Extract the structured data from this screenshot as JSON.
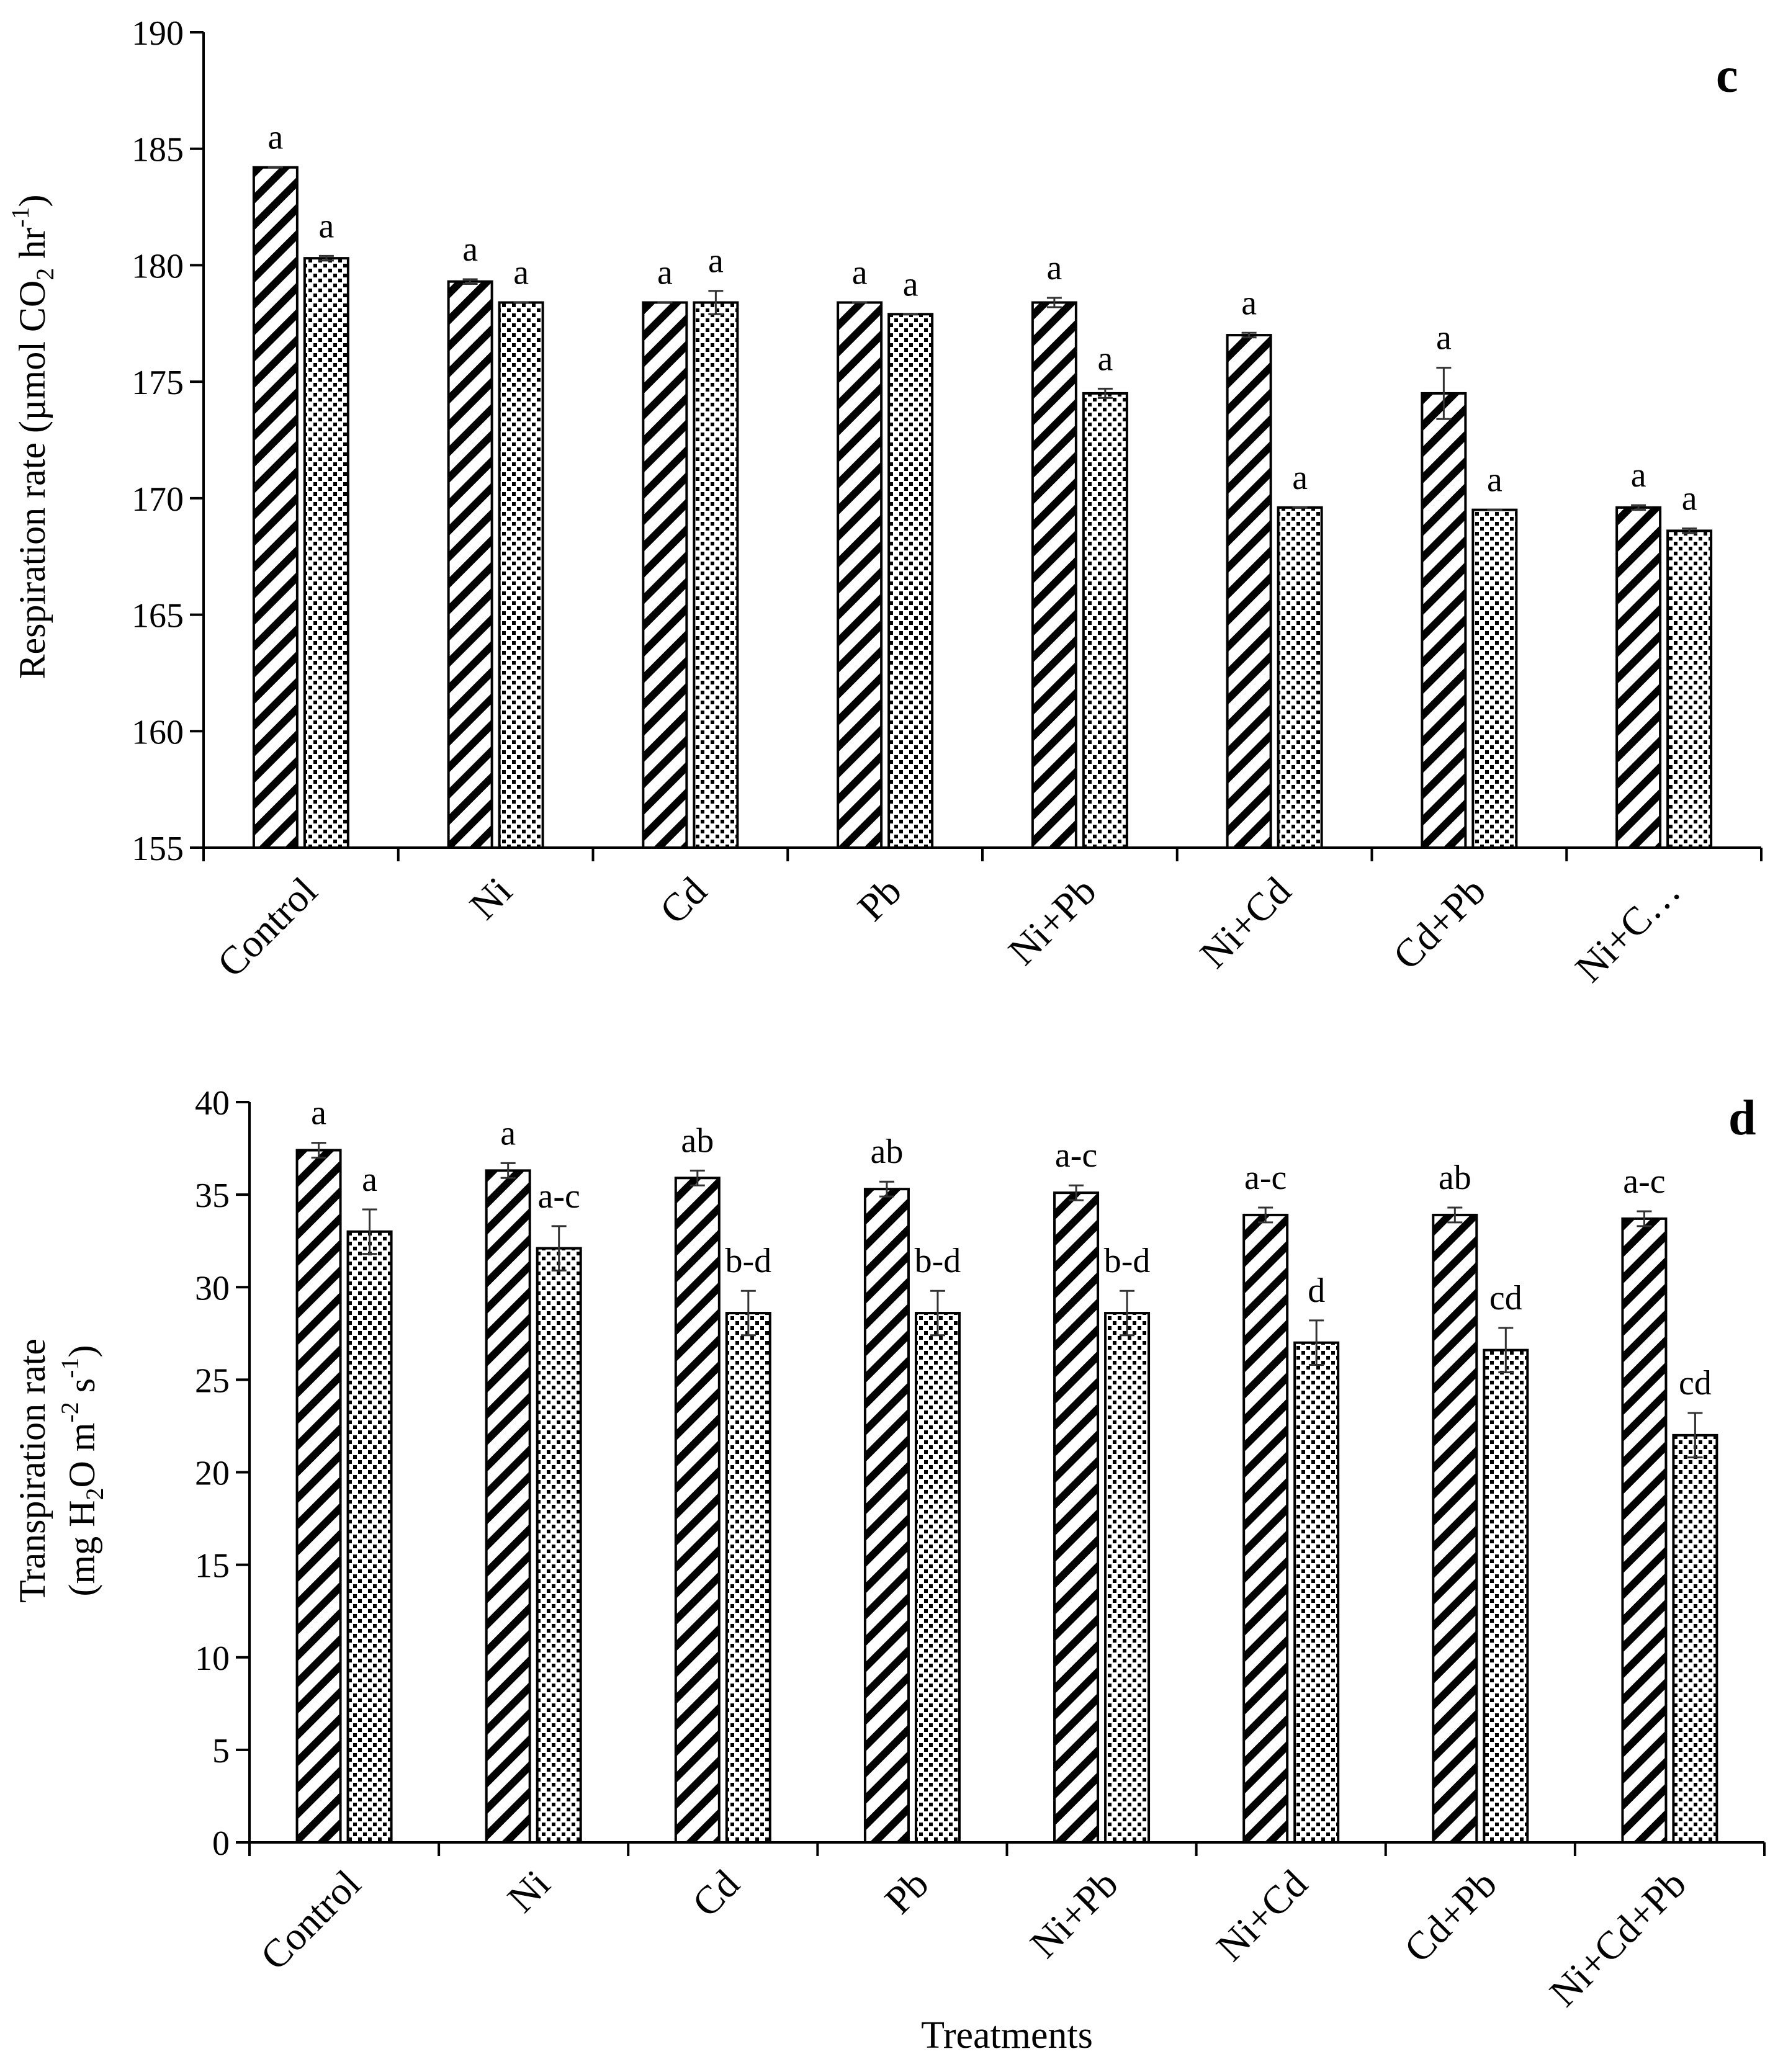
{
  "chart_data": [
    {
      "type": "bar",
      "panel": "c",
      "ylabel": "Respiration rate (µmol CO2 hr-1)",
      "ylabel_parts": [
        "Respiration rate (µmol CO",
        "2",
        " hr",
        "-1",
        ")"
      ],
      "xlabel": "",
      "ylim": [
        155,
        190
      ],
      "yticks": [
        155,
        160,
        165,
        170,
        175,
        180,
        185,
        190
      ],
      "categories": [
        "Control",
        "Ni",
        "Cd",
        "Pb",
        "Ni+Pb",
        "Ni+Cd",
        "Cd+Pb",
        "Ni+C…"
      ],
      "series": [
        {
          "name": "series 1",
          "pattern": "diagonal",
          "values": [
            184.2,
            179.3,
            178.4,
            178.4,
            178.4,
            177.0,
            174.5,
            169.6
          ],
          "errors": [
            0.0,
            0.1,
            0.0,
            0.0,
            0.2,
            0.1,
            1.1,
            0.1
          ],
          "letters": [
            "a",
            "a",
            "a",
            "a",
            "a",
            "a",
            "a",
            "a"
          ]
        },
        {
          "name": "series 2",
          "pattern": "dotted",
          "values": [
            180.3,
            178.4,
            178.4,
            177.9,
            174.5,
            169.6,
            169.5,
            168.6
          ],
          "errors": [
            0.1,
            0.0,
            0.5,
            0.0,
            0.2,
            0.0,
            0.0,
            0.1
          ],
          "letters": [
            "a",
            "a",
            "a",
            "a",
            "a",
            "a",
            "a",
            "a"
          ]
        }
      ]
    },
    {
      "type": "bar",
      "panel": "d",
      "ylabel": "Transpiration rate (mg H2O m-2 s-1)",
      "ylabel_line1": "Transpiration rate",
      "ylabel_parts": [
        "(mg H",
        "2",
        "O m",
        "-2",
        " s",
        "-1",
        ")"
      ],
      "xlabel": "Treatments",
      "ylim": [
        0,
        40
      ],
      "yticks": [
        0,
        5,
        10,
        15,
        20,
        25,
        30,
        35,
        40
      ],
      "categories": [
        "Control",
        "Ni",
        "Cd",
        "Pb",
        "Ni+Pb",
        "Ni+Cd",
        "Cd+Pb",
        "Ni+Cd+Pb"
      ],
      "series": [
        {
          "name": "series 1",
          "pattern": "diagonal",
          "values": [
            37.4,
            36.3,
            35.9,
            35.3,
            35.1,
            33.9,
            33.9,
            33.7
          ],
          "errors": [
            0.4,
            0.4,
            0.4,
            0.4,
            0.4,
            0.4,
            0.4,
            0.4
          ],
          "letters": [
            "a",
            "a",
            "ab",
            "ab",
            "a-c",
            "a-c",
            "ab",
            "a-c"
          ]
        },
        {
          "name": "series 2",
          "pattern": "dotted",
          "values": [
            33.0,
            32.1,
            28.6,
            28.6,
            28.6,
            27.0,
            26.6,
            22.0
          ],
          "errors": [
            1.2,
            1.2,
            1.2,
            1.2,
            1.2,
            1.2,
            1.2,
            1.2
          ],
          "letters": [
            "a",
            "a-c",
            "b-d",
            "b-d",
            "b-d",
            "d",
            "cd",
            "cd"
          ]
        }
      ]
    }
  ]
}
